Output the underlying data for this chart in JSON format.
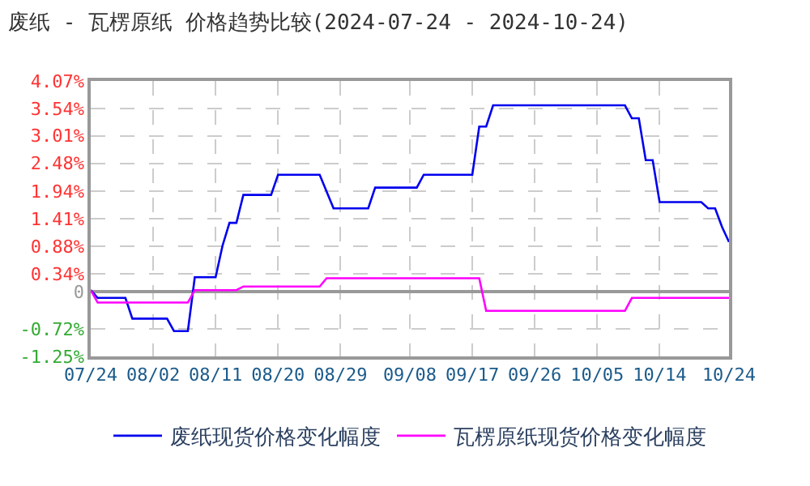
{
  "chart_data": {
    "type": "line",
    "title": "废纸 - 瓦楞原纸 价格趋势比较(2024-07-24 - 2024-10-24)",
    "series": [
      {
        "name": "废纸现货价格变化幅度",
        "color": "#0000ee",
        "x": [
          "2024-07-24",
          "2024-07-25",
          "2024-07-29",
          "2024-07-30",
          "2024-08-04",
          "2024-08-05",
          "2024-08-07",
          "2024-08-08",
          "2024-08-11",
          "2024-08-12",
          "2024-08-13",
          "2024-08-14",
          "2024-08-15",
          "2024-08-19",
          "2024-08-20",
          "2024-08-26",
          "2024-08-28",
          "2024-09-02",
          "2024-09-03",
          "2024-09-09",
          "2024-09-10",
          "2024-09-17",
          "2024-09-18",
          "2024-09-19",
          "2024-09-20",
          "2024-10-09",
          "2024-10-10",
          "2024-10-11",
          "2024-10-12",
          "2024-10-13",
          "2024-10-14",
          "2024-10-20",
          "2024-10-21",
          "2024-10-22",
          "2024-10-23",
          "2024-10-24"
        ],
        "values": [
          0.03,
          -0.12,
          -0.12,
          -0.52,
          -0.52,
          -0.76,
          -0.76,
          0.28,
          0.28,
          0.89,
          1.33,
          1.33,
          1.87,
          1.87,
          2.26,
          2.26,
          1.61,
          1.61,
          2.01,
          2.01,
          2.26,
          2.26,
          3.19,
          3.19,
          3.6,
          3.6,
          3.35,
          3.35,
          2.54,
          2.54,
          1.73,
          1.73,
          1.61,
          1.61,
          1.25,
          0.96
        ]
      },
      {
        "name": "瓦楞原纸现货价格变化幅度",
        "color": "#ff00ff",
        "x": [
          "2024-07-24",
          "2024-07-25",
          "2024-08-07",
          "2024-08-08",
          "2024-08-14",
          "2024-08-15",
          "2024-08-26",
          "2024-08-27",
          "2024-09-18",
          "2024-09-19",
          "2024-10-09",
          "2024-10-10",
          "2024-10-24"
        ],
        "values": [
          0.03,
          -0.21,
          -0.21,
          0.03,
          0.03,
          0.1,
          0.1,
          0.26,
          0.26,
          -0.37,
          -0.37,
          -0.12,
          -0.12
        ]
      }
    ],
    "xlim": [
      "2024-07-24",
      "2024-10-24"
    ],
    "xticks": [
      {
        "value": "2024-07-24",
        "label": "07/24"
      },
      {
        "value": "2024-08-02",
        "label": "08/02"
      },
      {
        "value": "2024-08-11",
        "label": "08/11"
      },
      {
        "value": "2024-08-20",
        "label": "08/20"
      },
      {
        "value": "2024-08-29",
        "label": "08/29"
      },
      {
        "value": "2024-09-08",
        "label": "09/08"
      },
      {
        "value": "2024-09-17",
        "label": "09/17"
      },
      {
        "value": "2024-09-26",
        "label": "09/26"
      },
      {
        "value": "2024-10-05",
        "label": "10/05"
      },
      {
        "value": "2024-10-14",
        "label": "10/14"
      },
      {
        "value": "2024-10-24",
        "label": "10/24"
      }
    ],
    "ylim": [
      -1.25,
      4.07
    ],
    "yticks": [
      {
        "value": 4.07,
        "label": "4.07%"
      },
      {
        "value": 3.54,
        "label": "3.54%"
      },
      {
        "value": 3.01,
        "label": "3.01%"
      },
      {
        "value": 2.48,
        "label": "2.48%"
      },
      {
        "value": 1.94,
        "label": "1.94%"
      },
      {
        "value": 1.41,
        "label": "1.41%"
      },
      {
        "value": 0.88,
        "label": "0.88%"
      },
      {
        "value": 0.34,
        "label": "0.34%"
      },
      0,
      {
        "value": -0.72,
        "label": "-0.72%"
      },
      {
        "value": -1.25,
        "label": "-1.25%"
      }
    ],
    "grid": true,
    "legend": "bottom",
    "marker": "none",
    "line_style": "solid"
  }
}
